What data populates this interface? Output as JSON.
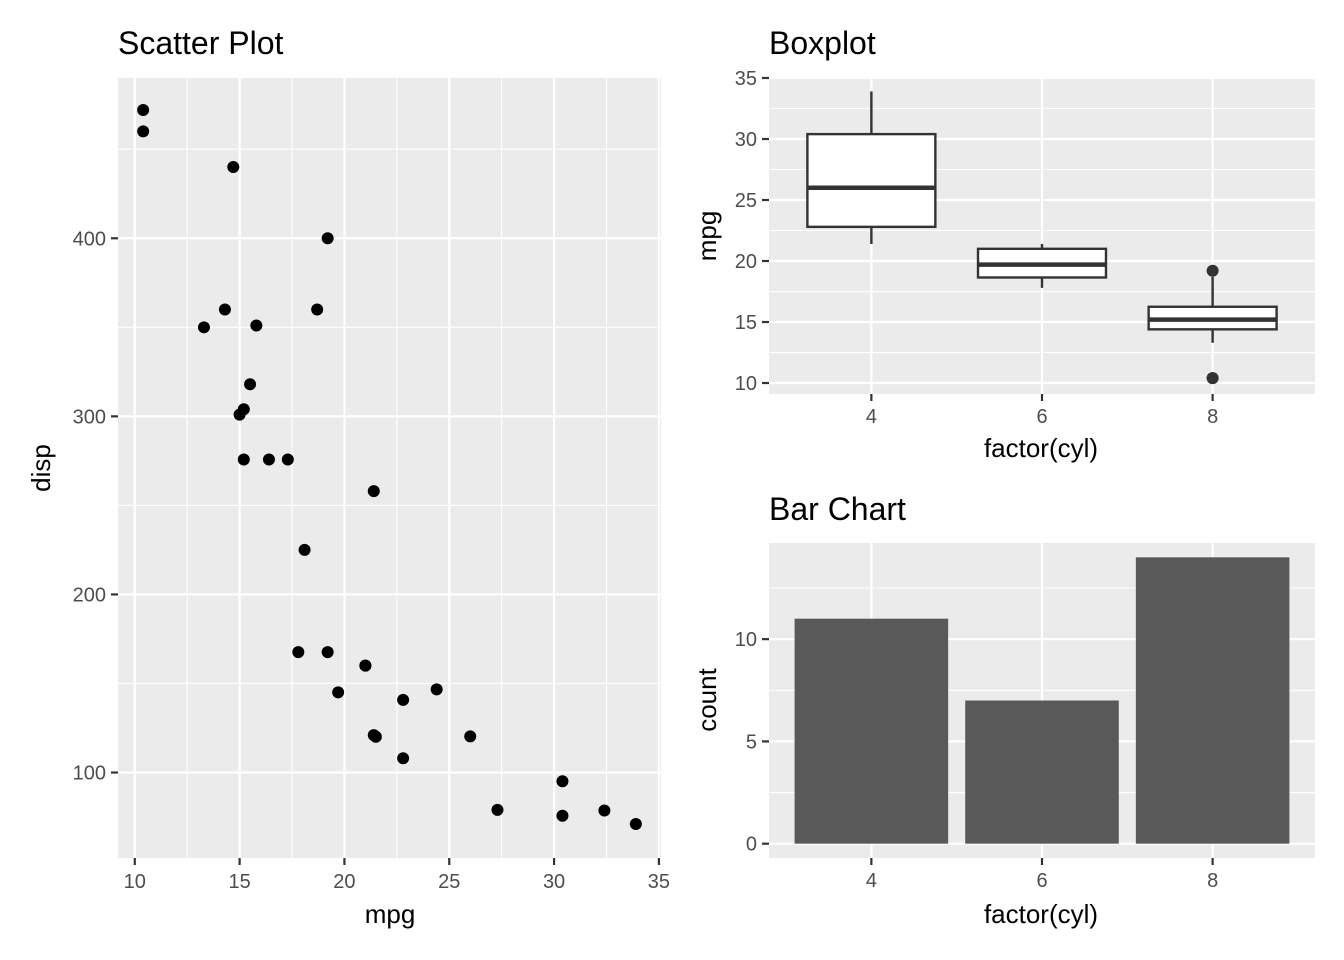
{
  "colors": {
    "panel_bg": "#ebebeb",
    "grid": "#ffffff",
    "points": "#000000",
    "box_stroke": "#333333",
    "box_fill": "#ffffff",
    "bar_fill": "#595959",
    "tick_text": "#4d4d4d"
  },
  "chart_data": [
    {
      "type": "scatter",
      "title": "Scatter Plot",
      "xlabel": "mpg",
      "ylabel": "disp",
      "xlim": [
        9.2,
        35.1
      ],
      "ylim": [
        52,
        490
      ],
      "x_ticks": [
        10,
        15,
        20,
        25,
        30,
        35
      ],
      "x_tick_labels": [
        "10",
        "15",
        "20",
        "25",
        "30",
        "35"
      ],
      "y_ticks": [
        100,
        200,
        300,
        400
      ],
      "y_tick_labels": [
        "100",
        "200",
        "300",
        "400"
      ],
      "grid": true,
      "points": [
        {
          "x": 21.0,
          "y": 160
        },
        {
          "x": 21.0,
          "y": 160
        },
        {
          "x": 22.8,
          "y": 108
        },
        {
          "x": 21.4,
          "y": 258
        },
        {
          "x": 18.7,
          "y": 360
        },
        {
          "x": 18.1,
          "y": 225
        },
        {
          "x": 14.3,
          "y": 360
        },
        {
          "x": 24.4,
          "y": 146.7
        },
        {
          "x": 22.8,
          "y": 140.8
        },
        {
          "x": 19.2,
          "y": 167.6
        },
        {
          "x": 17.8,
          "y": 167.6
        },
        {
          "x": 16.4,
          "y": 275.8
        },
        {
          "x": 17.3,
          "y": 275.8
        },
        {
          "x": 15.2,
          "y": 275.8
        },
        {
          "x": 10.4,
          "y": 472
        },
        {
          "x": 10.4,
          "y": 460
        },
        {
          "x": 14.7,
          "y": 440
        },
        {
          "x": 32.4,
          "y": 78.7
        },
        {
          "x": 30.4,
          "y": 75.7
        },
        {
          "x": 33.9,
          "y": 71.1
        },
        {
          "x": 21.5,
          "y": 120.1
        },
        {
          "x": 15.5,
          "y": 318
        },
        {
          "x": 15.2,
          "y": 304
        },
        {
          "x": 13.3,
          "y": 350
        },
        {
          "x": 19.2,
          "y": 400
        },
        {
          "x": 27.3,
          "y": 79
        },
        {
          "x": 26.0,
          "y": 120.3
        },
        {
          "x": 30.4,
          "y": 95.1
        },
        {
          "x": 15.8,
          "y": 351
        },
        {
          "x": 19.7,
          "y": 145
        },
        {
          "x": 15.0,
          "y": 301
        },
        {
          "x": 21.4,
          "y": 121
        }
      ]
    },
    {
      "type": "boxplot",
      "title": "Boxplot",
      "xlabel": "factor(cyl)",
      "ylabel": "mpg",
      "ylim": [
        9.1,
        35.0
      ],
      "y_ticks": [
        10,
        15,
        20,
        25,
        30,
        35
      ],
      "y_tick_labels": [
        "10",
        "15",
        "20",
        "25",
        "30",
        "35"
      ],
      "categories": [
        "4",
        "6",
        "8"
      ],
      "grid": true,
      "boxes": [
        {
          "category": "4",
          "whisker_low": 21.4,
          "q1": 22.8,
          "median": 26.0,
          "q3": 30.4,
          "whisker_high": 33.9,
          "outliers": []
        },
        {
          "category": "6",
          "whisker_low": 17.8,
          "q1": 18.65,
          "median": 19.7,
          "q3": 21.0,
          "whisker_high": 21.4,
          "outliers": []
        },
        {
          "category": "8",
          "whisker_low": 13.3,
          "q1": 14.4,
          "median": 15.2,
          "q3": 16.25,
          "whisker_high": 18.7,
          "outliers": [
            10.4,
            10.4,
            19.2
          ]
        }
      ]
    },
    {
      "type": "bar",
      "title": "Bar Chart",
      "xlabel": "factor(cyl)",
      "ylabel": "count",
      "ylim": [
        -0.7,
        14.7
      ],
      "y_ticks": [
        0,
        5,
        10
      ],
      "y_tick_labels": [
        "0",
        "5",
        "10"
      ],
      "categories": [
        "4",
        "6",
        "8"
      ],
      "values": [
        11,
        7,
        14
      ],
      "grid": true
    }
  ]
}
